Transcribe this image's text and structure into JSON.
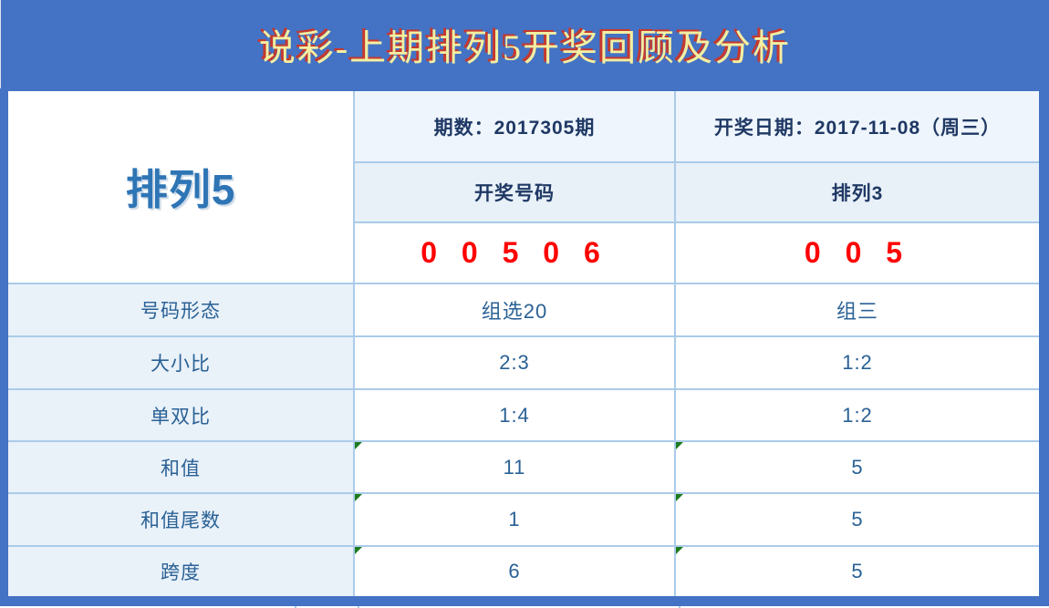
{
  "header": {
    "title": "说彩-上期排列5开奖回顾及分析"
  },
  "table": {
    "game_name": "排列5",
    "info_row": {
      "issue": "期数：2017305期",
      "draw_date": "开奖日期：2017-11-08（周三）"
    },
    "subheader_row": {
      "left": "开奖号码",
      "right": "排列3"
    },
    "numbers_row": {
      "left": "0 0 5 0 6",
      "right": "0 0 5"
    },
    "stat_rows": [
      {
        "label": "号码形态",
        "left": "组选20",
        "right": "组三"
      },
      {
        "label": "大小比",
        "left": "2:3",
        "right": "1:2"
      },
      {
        "label": "单双比",
        "left": "1:4",
        "right": "1:2"
      },
      {
        "label": "和值",
        "left": "11",
        "right": "5"
      },
      {
        "label": "和值尾数",
        "left": "1",
        "right": "5"
      },
      {
        "label": "跨度",
        "left": "6",
        "right": "5"
      }
    ]
  },
  "colors": {
    "header_bg": "#4472c4",
    "title_text": "#f2efa2",
    "title_shadow": "#c6382e",
    "winning_number_red": "#ff0000",
    "game_name_blue": "#2e75b5",
    "info_text_navy": "#1f3864",
    "stat_text_blue": "#2a6195",
    "cell_border": "#abcbe9",
    "light_cell_bg": "#e9f1f9",
    "flag_green": "#1e7b1e"
  }
}
